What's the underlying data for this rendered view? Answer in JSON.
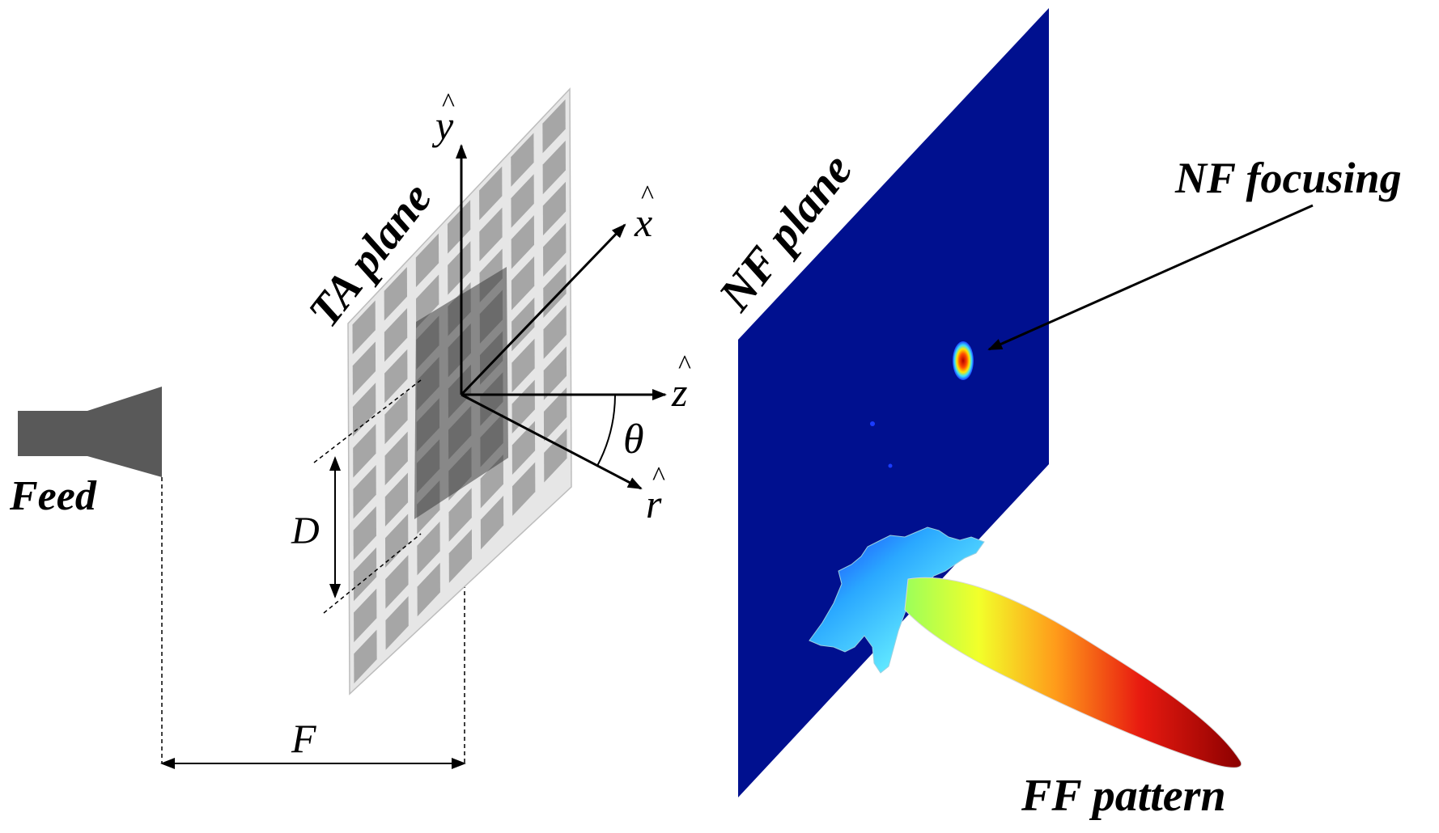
{
  "labels": {
    "feed": "Feed",
    "ta_plane": "TA plane",
    "nf_plane": "NF plane",
    "nf_focusing": "NF focusing",
    "ff_pattern": "FF pattern",
    "dim_d": "D",
    "dim_f": "F",
    "axis_y": "y",
    "axis_x": "x",
    "axis_z": "z",
    "axis_r": "r",
    "angle_theta": "θ",
    "hat": "^"
  },
  "colors": {
    "feed": "#595959",
    "ta_panel": "#e6e6e6",
    "ta_cell": "#a6a6a6",
    "ta_shade": "#4d4d4d",
    "nf_plane": "#00108f",
    "arrow": "#000000"
  },
  "icons": {
    "feed": "horn-antenna-icon",
    "ff_pattern": "radiation-lobe-icon",
    "nf_focus": "focal-spot-icon"
  }
}
